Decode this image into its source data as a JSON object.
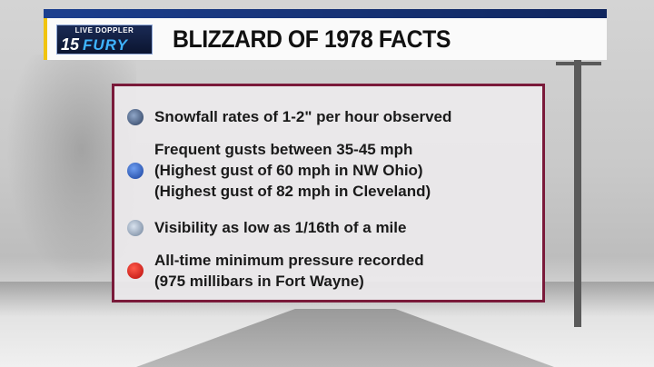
{
  "logo": {
    "top": "LIVE DOPPLER",
    "number": "15",
    "brand": "FURY"
  },
  "title": "BLIZZARD OF 1978 FACTS",
  "facts": [
    {
      "icon": "snowflake-icon",
      "lines": [
        "Snowfall rates of 1-2\" per hour observed"
      ]
    },
    {
      "icon": "wind-icon",
      "lines": [
        "Frequent gusts between 35-45 mph",
        "(Highest gust of 60 mph in NW Ohio)",
        "(Highest gust of 82 mph in Cleveland)"
      ]
    },
    {
      "icon": "fog-visibility-icon",
      "lines": [
        "Visibility as low as 1/16th of a mile"
      ]
    },
    {
      "icon": "pressure-dot-icon",
      "lines": [
        "All-time minimum pressure recorded",
        "(975 millibars in Fort Wayne)"
      ]
    }
  ],
  "colors": {
    "header_stripe": "#1c3f8f",
    "accent": "#f1c40f",
    "panel_border": "#7a1a3a"
  }
}
